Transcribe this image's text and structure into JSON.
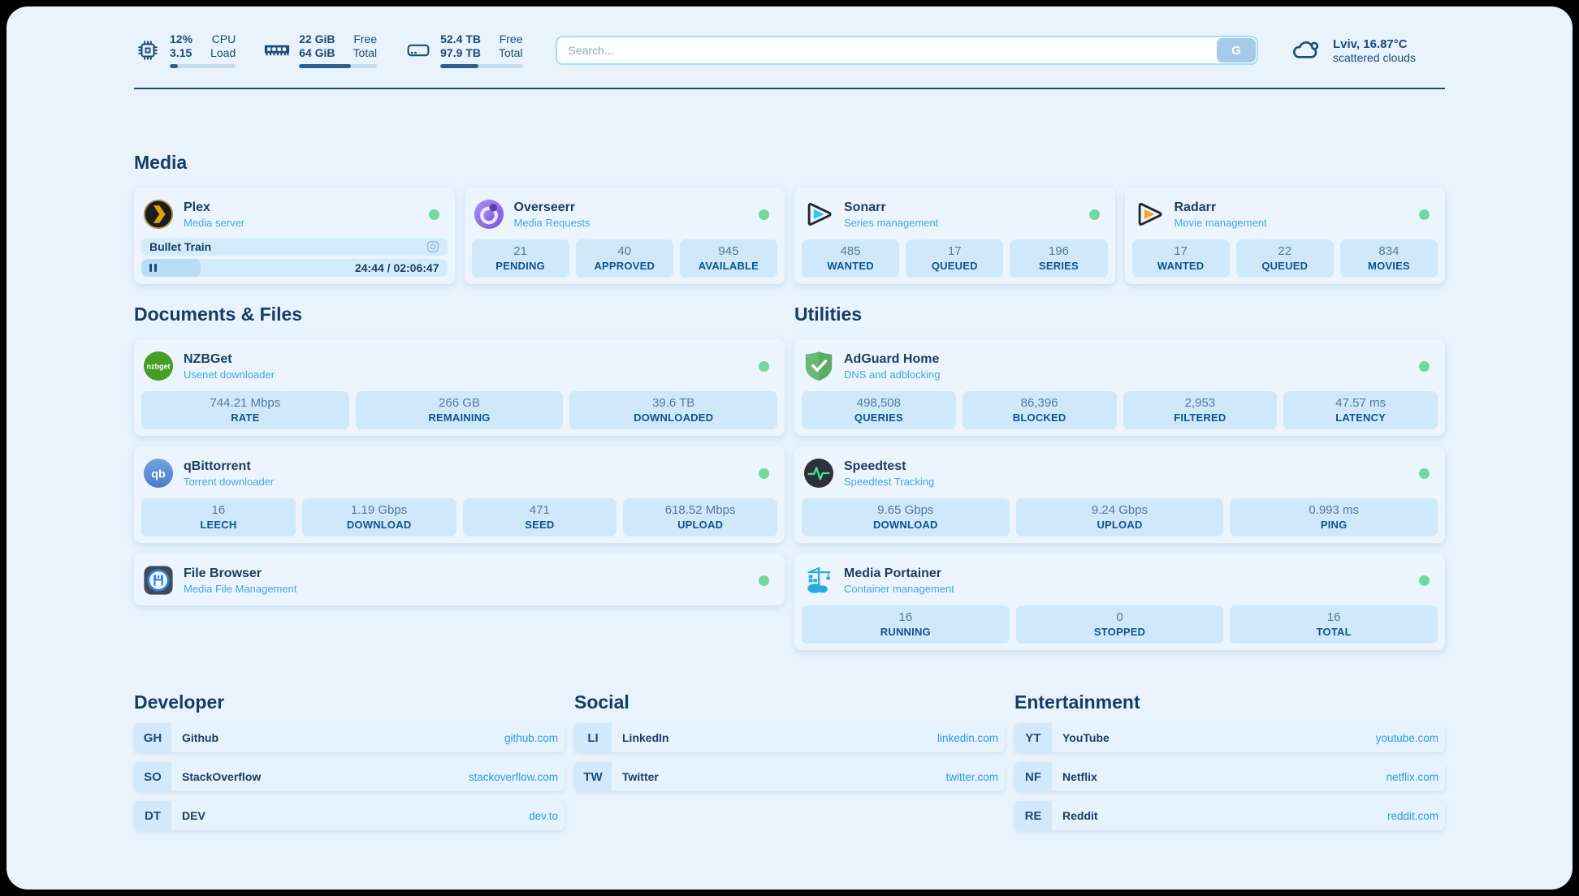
{
  "topbar": {
    "stats": [
      {
        "icon": "cpu-icon",
        "values": [
          "12%",
          "3.15"
        ],
        "labels": [
          "CPU",
          "Load"
        ],
        "progress_pct": 12
      },
      {
        "icon": "ram-icon",
        "values": [
          "22 GiB",
          "64 GiB"
        ],
        "labels": [
          "Free",
          "Total"
        ],
        "progress_pct": 66
      },
      {
        "icon": "disk-icon",
        "values": [
          "52.4 TB",
          "97.9 TB"
        ],
        "labels": [
          "Free",
          "Total"
        ],
        "progress_pct": 46
      }
    ],
    "search": {
      "placeholder": "Search...",
      "button_label": "G"
    },
    "weather": {
      "icon": "cloud-icon",
      "location_temp": "Lviv, 16.87°C",
      "condition": "scattered clouds"
    }
  },
  "media": {
    "title": "Media",
    "apps": [
      {
        "name": "Plex",
        "subtitle": "Media server",
        "icon": "plex-icon",
        "status": "online",
        "now_playing": {
          "title": "Bullet Train",
          "time_display": "24:44 / 02:06:47",
          "progress_pct": 19.5
        }
      },
      {
        "name": "Overseerr",
        "subtitle": "Media Requests",
        "icon": "overseerr-icon",
        "status": "online",
        "stats": [
          {
            "value": "21",
            "label": "PENDING"
          },
          {
            "value": "40",
            "label": "APPROVED"
          },
          {
            "value": "945",
            "label": "AVAILABLE"
          }
        ]
      },
      {
        "name": "Sonarr",
        "subtitle": "Series management",
        "icon": "sonarr-icon",
        "status": "online",
        "stats": [
          {
            "value": "485",
            "label": "WANTED"
          },
          {
            "value": "17",
            "label": "QUEUED"
          },
          {
            "value": "196",
            "label": "SERIES"
          }
        ]
      },
      {
        "name": "Radarr",
        "subtitle": "Movie management",
        "icon": "radarr-icon",
        "status": "online",
        "stats": [
          {
            "value": "17",
            "label": "WANTED"
          },
          {
            "value": "22",
            "label": "QUEUED"
          },
          {
            "value": "834",
            "label": "MOVIES"
          }
        ]
      }
    ]
  },
  "documents": {
    "title": "Documents & Files",
    "apps": [
      {
        "name": "NZBGet",
        "subtitle": "Usenet downloader",
        "icon": "nzbget-icon",
        "status": "online",
        "stats": [
          {
            "value": "744.21 Mbps",
            "label": "RATE"
          },
          {
            "value": "266 GB",
            "label": "REMAINING"
          },
          {
            "value": "39.6 TB",
            "label": "DOWNLOADED"
          }
        ]
      },
      {
        "name": "qBittorrent",
        "subtitle": "Torrent downloader",
        "icon": "qbittorrent-icon",
        "status": "online",
        "stats": [
          {
            "value": "16",
            "label": "LEECH"
          },
          {
            "value": "1.19 Gbps",
            "label": "DOWNLOAD"
          },
          {
            "value": "471",
            "label": "SEED"
          },
          {
            "value": "618.52 Mbps",
            "label": "UPLOAD"
          }
        ]
      },
      {
        "name": "File Browser",
        "subtitle": "Media File Management",
        "icon": "filebrowser-icon",
        "status": "online",
        "stats": []
      }
    ]
  },
  "utilities": {
    "title": "Utilities",
    "apps": [
      {
        "name": "AdGuard Home",
        "subtitle": "DNS and adblocking",
        "icon": "adguard-icon",
        "status": "online",
        "stats": [
          {
            "value": "498,508",
            "label": "QUERIES"
          },
          {
            "value": "86,396",
            "label": "BLOCKED"
          },
          {
            "value": "2,953",
            "label": "FILTERED"
          },
          {
            "value": "47.57 ms",
            "label": "LATENCY"
          }
        ]
      },
      {
        "name": "Speedtest",
        "subtitle": "Speedtest Tracking",
        "icon": "speedtest-icon",
        "status": "online",
        "stats": [
          {
            "value": "9.65 Gbps",
            "label": "DOWNLOAD"
          },
          {
            "value": "9.24 Gbps",
            "label": "UPLOAD"
          },
          {
            "value": "0.993 ms",
            "label": "PING"
          }
        ]
      },
      {
        "name": "Media Portainer",
        "subtitle": "Container management",
        "icon": "portainer-icon",
        "status": "online",
        "stats": [
          {
            "value": "16",
            "label": "RUNNING"
          },
          {
            "value": "0",
            "label": "STOPPED"
          },
          {
            "value": "16",
            "label": "TOTAL"
          }
        ]
      }
    ]
  },
  "links": {
    "groups": [
      {
        "title": "Developer",
        "items": [
          {
            "abbr": "GH",
            "name": "Github",
            "url": "github.com"
          },
          {
            "abbr": "SO",
            "name": "StackOverflow",
            "url": "stackoverflow.com"
          },
          {
            "abbr": "DT",
            "name": "DEV",
            "url": "dev.to"
          }
        ]
      },
      {
        "title": "Social",
        "items": [
          {
            "abbr": "LI",
            "name": "LinkedIn",
            "url": "linkedin.com"
          },
          {
            "abbr": "TW",
            "name": "Twitter",
            "url": "twitter.com"
          }
        ]
      },
      {
        "title": "Entertainment",
        "items": [
          {
            "abbr": "YT",
            "name": "YouTube",
            "url": "youtube.com"
          },
          {
            "abbr": "NF",
            "name": "Netflix",
            "url": "netflix.com"
          },
          {
            "abbr": "RE",
            "name": "Reddit",
            "url": "reddit.com"
          }
        ]
      }
    ]
  },
  "colors": {
    "background": "#e9f3fc",
    "card": "#ecf5fd",
    "tile": "#cfe9fa",
    "navy_text": "#1d3e63",
    "subtitle_blue": "#43a7e8",
    "label_blue": "#10538f",
    "status_online_green": "#72d99e",
    "url_blue": "#2f9ce2",
    "progress_fill": "#2c608c"
  }
}
